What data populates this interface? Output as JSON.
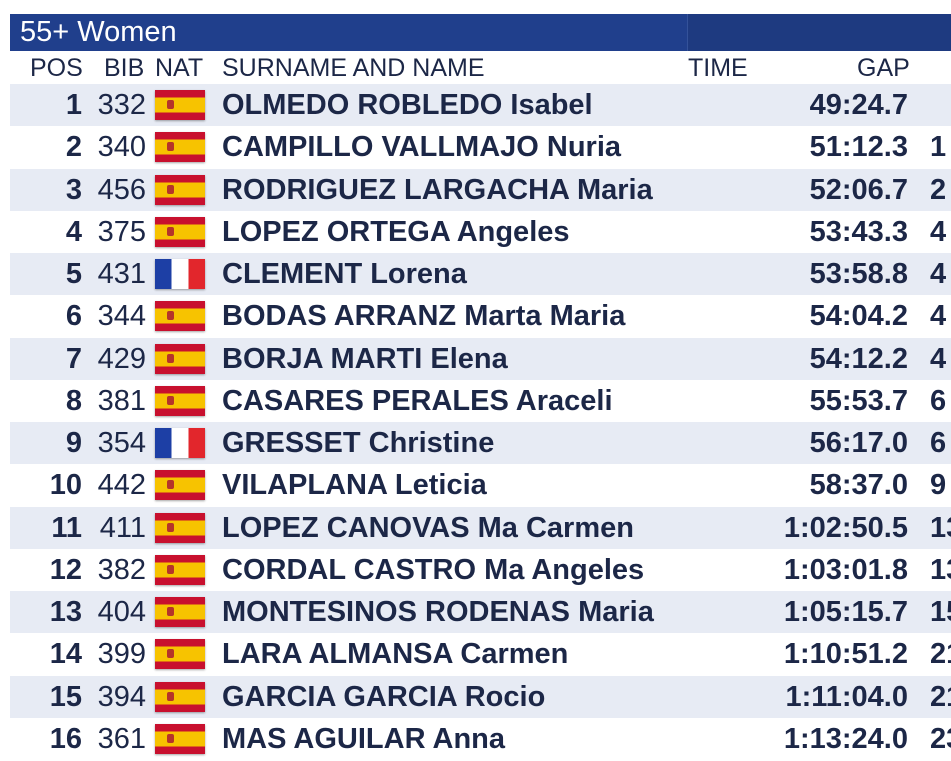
{
  "header": {
    "title": "55+ Women"
  },
  "columns": [
    "POS",
    "BIB",
    "NAT",
    "SURNAME AND NAME",
    "TIME",
    "GAP"
  ],
  "rows": [
    {
      "pos": 1,
      "bib": 332,
      "name": "OLMEDO ROBLEDO Isabel",
      "time": "49:24.7"
    },
    {
      "pos": 2,
      "bib": 340,
      "name": "CAMPILLO VALLMAJO Nuria",
      "time": "51:12.3",
      "gap": "1"
    },
    {
      "pos": 3,
      "bib": 456,
      "name": "RODRIGUEZ LARGACHA Maria",
      "time": "52:06.7",
      "gap": "2"
    },
    {
      "pos": 4,
      "bib": 375,
      "name": "LOPEZ ORTEGA Angeles",
      "time": "53:43.3",
      "gap": "4"
    },
    {
      "pos": 5,
      "bib": 431,
      "name": "CLEMENT Lorena",
      "time": "53:58.8",
      "gap": "4"
    },
    {
      "pos": 6,
      "bib": 344,
      "name": "BODAS ARRANZ Marta Maria",
      "time": "54:04.2",
      "gap": "4"
    },
    {
      "pos": 7,
      "bib": 429,
      "name": "BORJA MARTI Elena",
      "time": "54:12.2",
      "gap": "4"
    },
    {
      "pos": 8,
      "bib": 381,
      "name": "CASARES PERALES Araceli",
      "time": "55:53.7",
      "gap": "6"
    },
    {
      "pos": 9,
      "bib": 354,
      "name": "GRESSET Christine",
      "time": "56:17.0",
      "gap": "6"
    },
    {
      "pos": 10,
      "bib": 442,
      "name": "VILAPLANA Leticia",
      "time": "58:37.0",
      "gap": "9"
    },
    {
      "pos": 11,
      "bib": 411,
      "name": "LOPEZ CANOVAS Ma Carmen",
      "time": "1:02:50.5",
      "gap": "13"
    },
    {
      "pos": 12,
      "bib": 382,
      "name": "CORDAL CASTRO Ma Angeles",
      "time": "1:03:01.8",
      "gap": "13"
    },
    {
      "pos": 13,
      "bib": 404,
      "name": "MONTESINOS RODENAS Maria",
      "time": "1:05:15.7",
      "gap": "15"
    },
    {
      "pos": 14,
      "bib": 399,
      "name": "LARA ALMANSA Carmen",
      "time": "1:10:51.2",
      "gap": "21"
    },
    {
      "pos": 15,
      "bib": 394,
      "name": "GARCIA GARCIA Rocio",
      "time": "1:11:04.0",
      "gap": "21"
    },
    {
      "pos": 16,
      "bib": 361,
      "name": "MAS AGUILAR Anna",
      "time": "1:13:24.0",
      "gap": "23"
    }
  ]
}
